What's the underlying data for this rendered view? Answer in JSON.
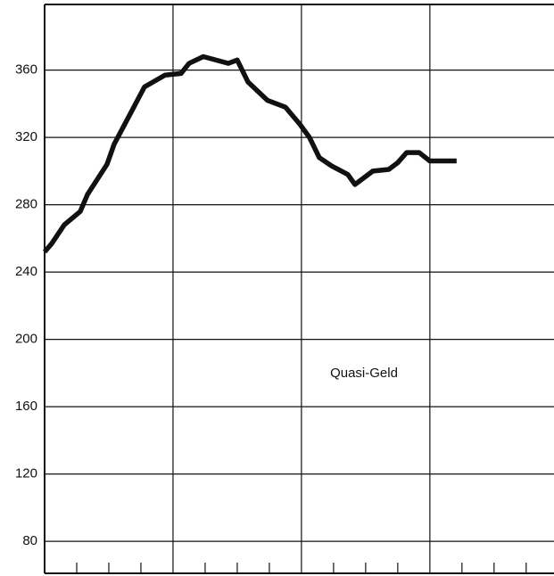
{
  "chart_data": {
    "type": "line",
    "annotation": "Quasi-Geld",
    "x": [
      0,
      0.67,
      1.83,
      3.33,
      4,
      5.83,
      6.5,
      7.92,
      9.33,
      11.25,
      12.75,
      13.5,
      14.83,
      17.17,
      18,
      19,
      20.83,
      22.5,
      23.83,
      24.75,
      25.67,
      26.83,
      28.33,
      29,
      30.67,
      32.17,
      33,
      33.83,
      35,
      36,
      38.5
    ],
    "series": [
      {
        "name": "Quasi-Geld",
        "color": "#111111",
        "values": [
          252,
          257,
          268,
          276,
          286,
          304,
          316,
          333,
          350,
          357,
          358,
          364,
          368,
          364,
          366,
          353,
          342,
          338,
          328,
          320,
          308,
          303,
          298,
          292,
          300,
          301,
          305,
          311,
          311,
          306,
          306
        ]
      }
    ],
    "xlim": [
      0,
      47.6
    ],
    "xgrid": [
      12,
      24,
      36
    ],
    "xticks": [
      3,
      6,
      9,
      15,
      18,
      21,
      27,
      30,
      33,
      39,
      42,
      45
    ],
    "ylim": [
      61,
      399
    ],
    "yticks": [
      80,
      120,
      160,
      200,
      240,
      280,
      320,
      360
    ],
    "grid": true
  }
}
